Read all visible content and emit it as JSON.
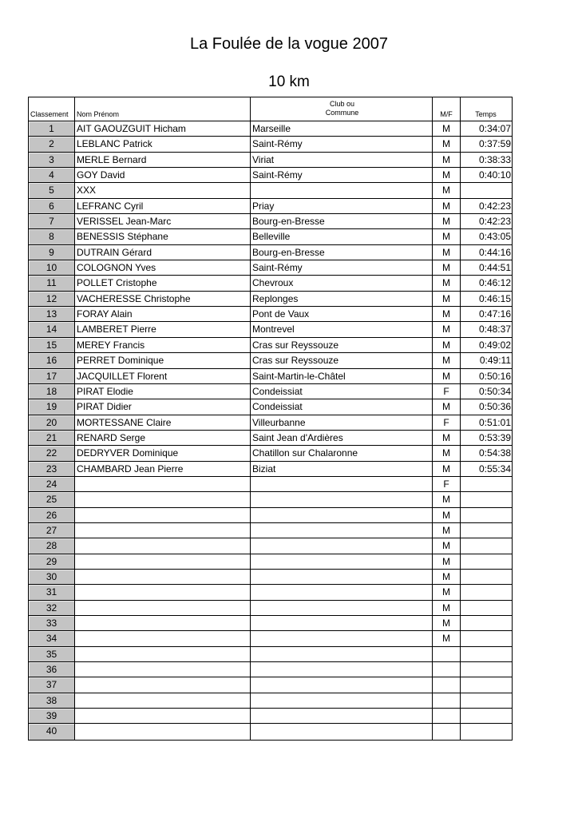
{
  "title": "La Foulée de la vogue 2007",
  "subtitle": "10 km",
  "headers": {
    "rank": "Classement",
    "name": "Nom Prénom",
    "club_line1": "Club ou",
    "club_line2": "Commune",
    "sex": "M/F",
    "time": "Temps"
  },
  "rows": [
    {
      "rank": "1",
      "name": "AIT GAOUZGUIT Hicham",
      "club": "Marseille",
      "sex": "M",
      "time": "0:34:07"
    },
    {
      "rank": "2",
      "name": "LEBLANC Patrick",
      "club": "Saint-Rémy",
      "sex": "M",
      "time": "0:37:59"
    },
    {
      "rank": "3",
      "name": "MERLE Bernard",
      "club": "Viriat",
      "sex": "M",
      "time": "0:38:33"
    },
    {
      "rank": "4",
      "name": "GOY David",
      "club": "Saint-Rémy",
      "sex": "M",
      "time": "0:40:10"
    },
    {
      "rank": "5",
      "name": "XXX",
      "club": "",
      "sex": "M",
      "time": ""
    },
    {
      "rank": "6",
      "name": "LEFRANC Cyril",
      "club": "Priay",
      "sex": "M",
      "time": "0:42:23"
    },
    {
      "rank": "7",
      "name": "VERISSEL Jean-Marc",
      "club": "Bourg-en-Bresse",
      "sex": "M",
      "time": "0:42:23"
    },
    {
      "rank": "8",
      "name": "BENESSIS Stéphane",
      "club": "Belleville",
      "sex": "M",
      "time": "0:43:05"
    },
    {
      "rank": "9",
      "name": "DUTRAIN Gérard",
      "club": "Bourg-en-Bresse",
      "sex": "M",
      "time": "0:44:16"
    },
    {
      "rank": "10",
      "name": "COLOGNON Yves",
      "club": "Saint-Rémy",
      "sex": "M",
      "time": "0:44:51"
    },
    {
      "rank": "11",
      "name": "POLLET Cristophe",
      "club": "Chevroux",
      "sex": "M",
      "time": "0:46:12"
    },
    {
      "rank": "12",
      "name": "VACHERESSE Christophe",
      "club": "Replonges",
      "sex": "M",
      "time": "0:46:15"
    },
    {
      "rank": "13",
      "name": "FORAY Alain",
      "club": "Pont de Vaux",
      "sex": "M",
      "time": "0:47:16"
    },
    {
      "rank": "14",
      "name": "LAMBERET Pierre",
      "club": "Montrevel",
      "sex": "M",
      "time": "0:48:37"
    },
    {
      "rank": "15",
      "name": "MEREY Francis",
      "club": "Cras sur Reyssouze",
      "sex": "M",
      "time": "0:49:02"
    },
    {
      "rank": "16",
      "name": "PERRET Dominique",
      "club": "Cras sur Reyssouze",
      "sex": "M",
      "time": "0:49:11"
    },
    {
      "rank": "17",
      "name": "JACQUILLET Florent",
      "club": "Saint-Martin-le-Châtel",
      "sex": "M",
      "time": "0:50:16"
    },
    {
      "rank": "18",
      "name": "PIRAT Elodie",
      "club": "Condeissiat",
      "sex": "F",
      "time": "0:50:34"
    },
    {
      "rank": "19",
      "name": "PIRAT Didier",
      "club": "Condeissiat",
      "sex": "M",
      "time": "0:50:36"
    },
    {
      "rank": "20",
      "name": "MORTESSANE Claire",
      "club": "Villeurbanne",
      "sex": "F",
      "time": "0:51:01"
    },
    {
      "rank": "21",
      "name": "RENARD Serge",
      "club": "Saint Jean d'Ardières",
      "sex": "M",
      "time": "0:53:39"
    },
    {
      "rank": "22",
      "name": "DEDRYVER Dominique",
      "club": "Chatillon sur Chalaronne",
      "sex": "M",
      "time": "0:54:38"
    },
    {
      "rank": "23",
      "name": "CHAMBARD Jean Pierre",
      "club": "Biziat",
      "sex": "M",
      "time": "0:55:34"
    },
    {
      "rank": "24",
      "name": "",
      "club": "",
      "sex": "F",
      "time": ""
    },
    {
      "rank": "25",
      "name": "",
      "club": "",
      "sex": "M",
      "time": ""
    },
    {
      "rank": "26",
      "name": "",
      "club": "",
      "sex": "M",
      "time": ""
    },
    {
      "rank": "27",
      "name": "",
      "club": "",
      "sex": "M",
      "time": ""
    },
    {
      "rank": "28",
      "name": "",
      "club": "",
      "sex": "M",
      "time": ""
    },
    {
      "rank": "29",
      "name": "",
      "club": "",
      "sex": "M",
      "time": ""
    },
    {
      "rank": "30",
      "name": "",
      "club": "",
      "sex": "M",
      "time": ""
    },
    {
      "rank": "31",
      "name": "",
      "club": "",
      "sex": "M",
      "time": ""
    },
    {
      "rank": "32",
      "name": "",
      "club": "",
      "sex": "M",
      "time": ""
    },
    {
      "rank": "33",
      "name": "",
      "club": "",
      "sex": "M",
      "time": ""
    },
    {
      "rank": "34",
      "name": "",
      "club": "",
      "sex": "M",
      "time": ""
    },
    {
      "rank": "35",
      "name": "",
      "club": "",
      "sex": "",
      "time": ""
    },
    {
      "rank": "36",
      "name": "",
      "club": "",
      "sex": "",
      "time": ""
    },
    {
      "rank": "37",
      "name": "",
      "club": "",
      "sex": "",
      "time": ""
    },
    {
      "rank": "38",
      "name": "",
      "club": "",
      "sex": "",
      "time": ""
    },
    {
      "rank": "39",
      "name": "",
      "club": "",
      "sex": "",
      "time": ""
    },
    {
      "rank": "40",
      "name": "",
      "club": "",
      "sex": "",
      "time": ""
    }
  ]
}
